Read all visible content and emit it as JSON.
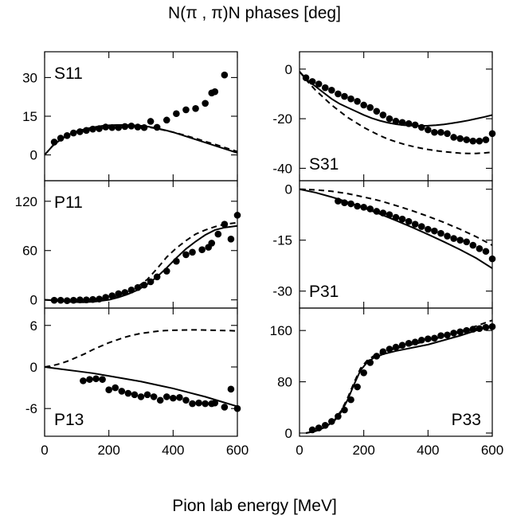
{
  "figure": {
    "title": "N(π , π)N phases [deg]",
    "xlabel": "Pion lab energy [MeV]"
  },
  "chart_data": [
    {
      "type": "scatter",
      "label": "S11",
      "label_pos": "top-left",
      "xlim": [
        0,
        600
      ],
      "ylim": [
        -10,
        40
      ],
      "yticks": [
        0,
        15,
        30
      ],
      "xticks": [
        0,
        200,
        400,
        600
      ],
      "xtick_labels": false,
      "series": [
        {
          "style": "points",
          "x": [
            30,
            50,
            70,
            90,
            110,
            130,
            150,
            170,
            190,
            210,
            230,
            250,
            270,
            290,
            310,
            330,
            350,
            380,
            410,
            440,
            470,
            500,
            520,
            530,
            560
          ],
          "y": [
            5,
            6.5,
            7.5,
            8.5,
            9,
            9.5,
            10,
            10.2,
            10.8,
            10.6,
            10.6,
            11,
            11.2,
            10.8,
            10.6,
            13,
            10.7,
            13.5,
            16,
            17.5,
            18,
            20,
            24,
            24.5,
            31
          ]
        },
        {
          "style": "solid",
          "x": [
            0,
            25,
            50,
            75,
            100,
            125,
            150,
            175,
            200,
            225,
            250,
            275,
            300,
            325,
            350,
            375,
            400,
            425,
            450,
            475,
            500,
            525,
            550,
            575,
            600
          ],
          "y": [
            0,
            3.5,
            6,
            7.8,
            9.1,
            10,
            10.7,
            11.2,
            11.5,
            11.6,
            11.6,
            11.5,
            11.3,
            10.9,
            10.3,
            9.6,
            8.8,
            7.8,
            6.8,
            5.8,
            4.8,
            3.8,
            2.8,
            1.8,
            0.8
          ]
        },
        {
          "style": "dashed",
          "x": [
            0,
            25,
            50,
            75,
            100,
            125,
            150,
            175,
            200,
            225,
            250,
            275,
            300,
            325,
            350,
            375,
            400,
            425,
            450,
            475,
            500,
            525,
            550,
            575,
            600
          ],
          "y": [
            0,
            3.5,
            6,
            7.8,
            9.1,
            10,
            10.6,
            11.1,
            11.4,
            11.5,
            11.5,
            11.4,
            11.1,
            10.7,
            10.2,
            9.5,
            8.8,
            8,
            7.1,
            6.2,
            5.2,
            4.3,
            3.3,
            2.3,
            1.3
          ]
        }
      ]
    },
    {
      "type": "scatter",
      "label": "S31",
      "label_pos": "bottom-left",
      "xlim": [
        0,
        600
      ],
      "ylim": [
        -45,
        7
      ],
      "yticks": [
        0,
        -20,
        -40
      ],
      "xticks": [
        0,
        200,
        400,
        600
      ],
      "xtick_labels": false,
      "series": [
        {
          "style": "points",
          "x": [
            20,
            40,
            60,
            80,
            100,
            120,
            140,
            160,
            180,
            200,
            220,
            240,
            260,
            280,
            300,
            320,
            340,
            360,
            380,
            400,
            420,
            440,
            460,
            480,
            500,
            520,
            540,
            560,
            580,
            600
          ],
          "y": [
            -3.5,
            -5,
            -6,
            -7.5,
            -8.5,
            -10,
            -11,
            -12,
            -13,
            -14.5,
            -15.5,
            -17,
            -18.5,
            -20,
            -21,
            -21.5,
            -22,
            -22.5,
            -23.5,
            -24.5,
            -25.5,
            -25.5,
            -26,
            -27.5,
            -28,
            -28.5,
            -29,
            -29,
            -28.5,
            -26
          ]
        },
        {
          "style": "solid",
          "x": [
            0,
            25,
            50,
            75,
            100,
            125,
            150,
            175,
            200,
            225,
            250,
            275,
            300,
            325,
            350,
            375,
            400,
            425,
            450,
            475,
            500,
            525,
            550,
            575,
            600
          ],
          "y": [
            -1,
            -4.5,
            -7,
            -9.5,
            -12,
            -14,
            -15.5,
            -17,
            -18.5,
            -19.8,
            -20.8,
            -21.6,
            -22.2,
            -22.6,
            -22.8,
            -22.9,
            -22.8,
            -22.6,
            -22.3,
            -21.8,
            -21.3,
            -20.7,
            -20,
            -19.3,
            -18.5
          ]
        },
        {
          "style": "dashed",
          "x": [
            0,
            25,
            50,
            75,
            100,
            125,
            150,
            175,
            200,
            225,
            250,
            275,
            300,
            325,
            350,
            375,
            400,
            425,
            450,
            475,
            500,
            525,
            550,
            575,
            600
          ],
          "y": [
            -1,
            -5,
            -8.5,
            -11.5,
            -14.5,
            -17,
            -19.5,
            -21.5,
            -23.5,
            -25.2,
            -26.8,
            -28.2,
            -29.3,
            -30.3,
            -31.1,
            -31.8,
            -32.4,
            -32.9,
            -33.3,
            -33.6,
            -33.9,
            -34,
            -34,
            -33.8,
            -33.5
          ]
        }
      ]
    },
    {
      "type": "scatter",
      "label": "P11",
      "label_pos": "top-left",
      "xlim": [
        0,
        600
      ],
      "ylim": [
        -10,
        145
      ],
      "yticks": [
        0,
        60,
        120
      ],
      "xticks": [
        0,
        200,
        400,
        600
      ],
      "xtick_labels": false,
      "series": [
        {
          "style": "points",
          "x": [
            30,
            50,
            70,
            90,
            110,
            130,
            150,
            170,
            190,
            210,
            230,
            250,
            270,
            290,
            310,
            330,
            350,
            380,
            410,
            440,
            460,
            490,
            510,
            520,
            540,
            560,
            580,
            600
          ],
          "y": [
            -0.5,
            -0.5,
            -1,
            -0.5,
            0,
            0,
            0.5,
            1,
            3,
            5,
            7.5,
            9,
            12,
            15,
            18,
            22,
            28,
            35,
            47,
            55,
            58,
            61,
            64,
            69,
            80,
            92,
            74,
            103
          ]
        },
        {
          "style": "solid",
          "x": [
            0,
            40,
            80,
            120,
            160,
            200,
            230,
            260,
            290,
            320,
            350,
            380,
            410,
            440,
            470,
            500,
            530,
            560,
            600
          ],
          "y": [
            0,
            -1,
            -2.5,
            -3,
            -2,
            0,
            3,
            7,
            12,
            19,
            28,
            39,
            51,
            62,
            71,
            79,
            85,
            88,
            90
          ]
        },
        {
          "style": "dashed",
          "x": [
            0,
            40,
            80,
            120,
            160,
            200,
            230,
            260,
            290,
            320,
            350,
            380,
            410,
            440,
            470,
            500,
            530,
            560,
            600
          ],
          "y": [
            0,
            -0.5,
            -1,
            -1,
            0,
            2,
            5,
            10,
            16,
            25,
            38,
            52,
            63,
            72,
            80,
            85,
            89,
            92,
            94
          ]
        }
      ]
    },
    {
      "type": "scatter",
      "label": "P31",
      "label_pos": "bottom-left",
      "xlim": [
        0,
        600
      ],
      "ylim": [
        -35,
        2.5
      ],
      "yticks": [
        0,
        -15,
        -30
      ],
      "xticks": [
        0,
        200,
        400,
        600
      ],
      "xtick_labels": false,
      "series": [
        {
          "style": "points",
          "x": [
            120,
            140,
            160,
            180,
            200,
            220,
            240,
            260,
            280,
            300,
            320,
            340,
            360,
            380,
            400,
            420,
            440,
            460,
            480,
            500,
            520,
            540,
            560,
            580,
            600
          ],
          "y": [
            -3.5,
            -4,
            -4.3,
            -5,
            -5.3,
            -5.8,
            -6.5,
            -7,
            -7.5,
            -8.3,
            -8.8,
            -9.5,
            -10.3,
            -11,
            -11.8,
            -12.3,
            -13,
            -13.8,
            -14.5,
            -15,
            -15.5,
            -16.5,
            -17.5,
            -18.3,
            -20.5
          ]
        },
        {
          "style": "solid",
          "x": [
            0,
            50,
            100,
            150,
            200,
            250,
            300,
            350,
            400,
            450,
            500,
            550,
            600
          ],
          "y": [
            0,
            -1,
            -2.3,
            -3.8,
            -5.5,
            -7.3,
            -9.2,
            -11.2,
            -13.3,
            -15.5,
            -17.8,
            -20.3,
            -23.3
          ]
        },
        {
          "style": "dashed",
          "x": [
            0,
            50,
            100,
            150,
            200,
            250,
            300,
            350,
            400,
            450,
            500,
            550,
            600
          ],
          "y": [
            0,
            -0.2,
            -0.6,
            -1.3,
            -2.3,
            -3.4,
            -4.8,
            -6.3,
            -8,
            -9.8,
            -11.8,
            -14,
            -16.5
          ]
        }
      ]
    },
    {
      "type": "scatter",
      "label": "P13",
      "label_pos": "bottom-left",
      "xlim": [
        0,
        600
      ],
      "ylim": [
        -10,
        8.5
      ],
      "yticks": [
        6,
        0,
        -6
      ],
      "xticks": [
        0,
        200,
        400,
        600
      ],
      "xtick_labels": true,
      "series": [
        {
          "style": "points",
          "x": [
            120,
            140,
            160,
            180,
            200,
            220,
            240,
            260,
            280,
            300,
            320,
            340,
            360,
            380,
            400,
            420,
            440,
            460,
            480,
            500,
            520,
            530,
            560,
            580,
            600
          ],
          "y": [
            -2,
            -1.8,
            -1.7,
            -1.8,
            -3.3,
            -3,
            -3.5,
            -3.8,
            -4,
            -4.3,
            -4,
            -4.3,
            -4.8,
            -4.3,
            -4.5,
            -4.4,
            -4.8,
            -5.3,
            -5.2,
            -5.3,
            -5.3,
            -5.2,
            -5.8,
            -3.2,
            -6
          ]
        },
        {
          "style": "solid",
          "x": [
            0,
            50,
            100,
            150,
            200,
            250,
            300,
            350,
            400,
            450,
            500,
            550,
            600
          ],
          "y": [
            0,
            -0.3,
            -0.6,
            -0.9,
            -1.3,
            -1.7,
            -2.1,
            -2.6,
            -3.1,
            -3.7,
            -4.3,
            -5,
            -5.7
          ]
        },
        {
          "style": "dashed",
          "x": [
            0,
            25,
            50,
            75,
            100,
            125,
            150,
            175,
            200,
            225,
            250,
            275,
            300,
            325,
            350,
            375,
            400,
            425,
            450,
            475,
            500,
            525,
            550,
            575,
            600
          ],
          "y": [
            0,
            0.2,
            0.5,
            0.9,
            1.4,
            1.9,
            2.5,
            3,
            3.5,
            3.9,
            4.3,
            4.6,
            4.85,
            5,
            5.15,
            5.25,
            5.3,
            5.33,
            5.35,
            5.35,
            5.33,
            5.3,
            5.27,
            5.25,
            5.2
          ]
        }
      ]
    },
    {
      "type": "scatter",
      "label": "P33",
      "label_pos": "bottom-right",
      "xlim": [
        0,
        600
      ],
      "ylim": [
        -5,
        195
      ],
      "yticks": [
        160,
        80,
        0
      ],
      "xticks": [
        0,
        200,
        400,
        600
      ],
      "xtick_labels": true,
      "series": [
        {
          "style": "points",
          "x": [
            40,
            60,
            80,
            100,
            120,
            140,
            160,
            180,
            200,
            220,
            240,
            260,
            280,
            300,
            320,
            340,
            360,
            380,
            400,
            420,
            440,
            460,
            480,
            500,
            520,
            540,
            560,
            580,
            600
          ],
          "y": [
            5,
            8,
            12,
            18,
            26,
            36,
            52,
            72,
            94,
            110,
            120,
            127,
            131,
            134,
            137,
            140,
            142,
            145,
            147,
            148,
            152,
            153,
            156,
            158,
            160,
            162,
            163,
            165,
            166
          ]
        },
        {
          "style": "solid",
          "x": [
            20,
            50,
            80,
            110,
            130,
            150,
            170,
            190,
            210,
            230,
            260,
            300,
            350,
            400,
            450,
            500,
            550,
            600
          ],
          "y": [
            0,
            3,
            9,
            20,
            33,
            52,
            76,
            98,
            110,
            117,
            123,
            128,
            133,
            138,
            145,
            152,
            160,
            168
          ]
        },
        {
          "style": "dashed",
          "x": [
            20,
            50,
            80,
            110,
            130,
            150,
            170,
            190,
            210,
            230,
            260,
            300,
            350,
            400,
            450,
            500,
            550,
            600
          ],
          "y": [
            0,
            3,
            9,
            21,
            35,
            55,
            79,
            101,
            113,
            120,
            126,
            132,
            138,
            144,
            151,
            159,
            167,
            176
          ]
        }
      ]
    }
  ]
}
